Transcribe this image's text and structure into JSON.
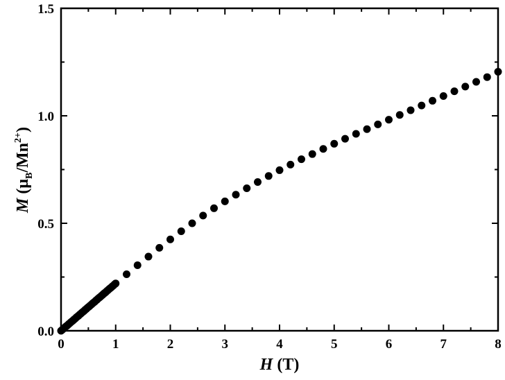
{
  "chart_data": {
    "type": "scatter",
    "xlabel": {
      "symbol": "H",
      "unit": " (T)"
    },
    "ylabel": {
      "symbol": "M",
      "open": " (",
      "mu": "μ",
      "sub": "B",
      "mid": "/Mn",
      "sup": "2+",
      "close": ")"
    },
    "xlim": [
      0,
      8
    ],
    "ylim": [
      0,
      1.5
    ],
    "x_ticks": [
      0,
      1,
      2,
      3,
      4,
      5,
      6,
      7,
      8
    ],
    "x_tick_labels": [
      "0",
      "1",
      "2",
      "3",
      "4",
      "5",
      "6",
      "7",
      "8"
    ],
    "y_ticks": [
      0,
      0.5,
      1.0,
      1.5
    ],
    "y_tick_labels": [
      "0.0",
      "0.5",
      "1.0",
      "1.5"
    ],
    "marker_color": "#000000",
    "series": [
      {
        "x": [
          0.0,
          0.02,
          0.04,
          0.06,
          0.08,
          0.1,
          0.12,
          0.14,
          0.16,
          0.18,
          0.2,
          0.22,
          0.24,
          0.26,
          0.28,
          0.3,
          0.32,
          0.34,
          0.36,
          0.38,
          0.4,
          0.42,
          0.44,
          0.46,
          0.48,
          0.5,
          0.52,
          0.54,
          0.56,
          0.58,
          0.6,
          0.62,
          0.64,
          0.66,
          0.68,
          0.7,
          0.72,
          0.74,
          0.76,
          0.78,
          0.8,
          0.82,
          0.84,
          0.86,
          0.88,
          0.9,
          0.92,
          0.94,
          0.96,
          0.98,
          1.0,
          1.2,
          1.4,
          1.6,
          1.8,
          2.0,
          2.2,
          2.4,
          2.6,
          2.8,
          3.0,
          3.2,
          3.4,
          3.6,
          3.8,
          4.0,
          4.2,
          4.4,
          4.6,
          4.8,
          5.0,
          5.2,
          5.4,
          5.6,
          5.8,
          6.0,
          6.2,
          6.4,
          6.6,
          6.8,
          7.0,
          7.2,
          7.4,
          7.6,
          7.8,
          8.0
        ],
        "y": [
          0.0,
          0.004,
          0.009,
          0.013,
          0.018,
          0.022,
          0.026,
          0.031,
          0.035,
          0.04,
          0.044,
          0.048,
          0.053,
          0.057,
          0.062,
          0.066,
          0.07,
          0.075,
          0.079,
          0.084,
          0.088,
          0.092,
          0.097,
          0.101,
          0.106,
          0.11,
          0.114,
          0.119,
          0.123,
          0.128,
          0.132,
          0.136,
          0.141,
          0.145,
          0.15,
          0.154,
          0.158,
          0.163,
          0.167,
          0.172,
          0.176,
          0.18,
          0.185,
          0.189,
          0.194,
          0.198,
          0.202,
          0.207,
          0.211,
          0.216,
          0.22,
          0.263,
          0.305,
          0.345,
          0.386,
          0.425,
          0.463,
          0.5,
          0.536,
          0.57,
          0.602,
          0.633,
          0.663,
          0.692,
          0.72,
          0.747,
          0.773,
          0.798,
          0.822,
          0.846,
          0.87,
          0.893,
          0.916,
          0.938,
          0.96,
          0.982,
          1.004,
          1.026,
          1.048,
          1.07,
          1.092,
          1.114,
          1.136,
          1.158,
          1.18,
          1.205
        ]
      }
    ]
  }
}
